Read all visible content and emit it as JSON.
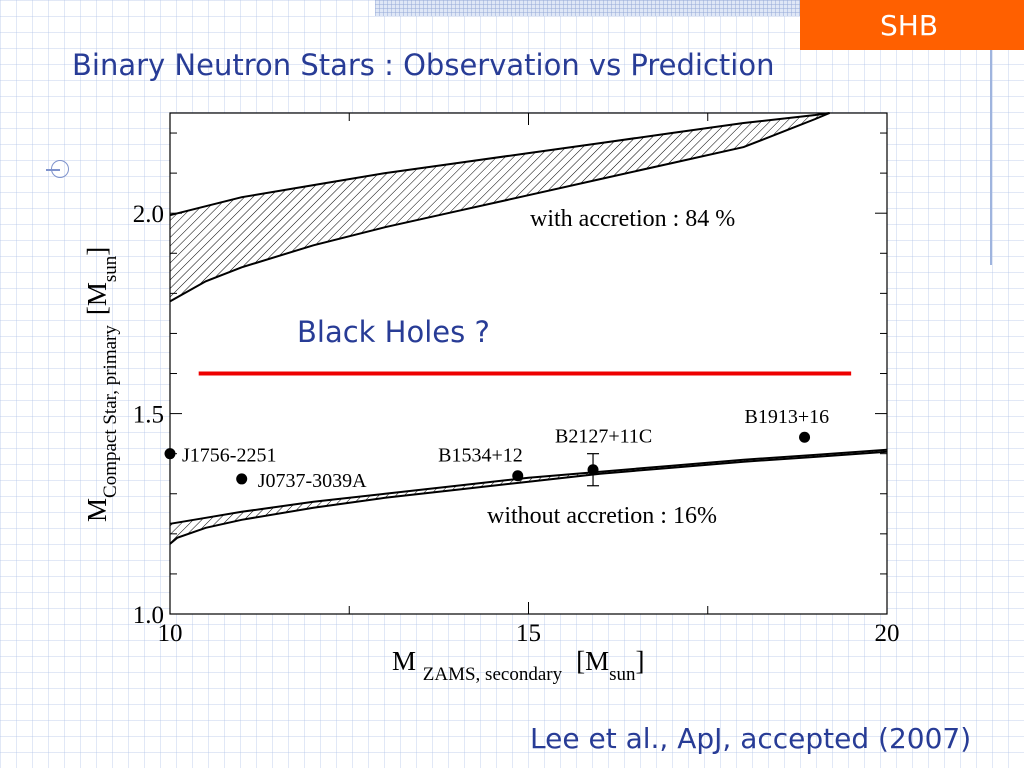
{
  "slide": {
    "tag": "SHB",
    "title": "Binary Neutron Stars : Observation vs Prediction",
    "citation": "Lee et al., ApJ, accepted (2007)",
    "colors": {
      "title": "#283c96",
      "tag_bg": "#ff6000",
      "boundary_line": "#ee0000"
    }
  },
  "chart_data": {
    "type": "area",
    "xlim": [
      10,
      20
    ],
    "ylim": [
      1.0,
      2.25
    ],
    "xticks": [
      {
        "value": 10,
        "label": "10"
      },
      {
        "value": 15,
        "label": "15"
      },
      {
        "value": 20,
        "label": "20"
      }
    ],
    "yticks": [
      {
        "value": 1.0,
        "label": "1.0"
      },
      {
        "value": 1.5,
        "label": "1.5"
      },
      {
        "value": 2.0,
        "label": "2.0"
      }
    ],
    "xlabel": {
      "main": "M",
      "sub": "ZAMS, secondary",
      "unit_pre": "[M",
      "unit_sub": "sun",
      "unit_post": "]"
    },
    "ylabel": {
      "main": "M",
      "sub": "Compact Star, primary",
      "unit_pre": "[M",
      "unit_sub": "sun",
      "unit_post": "]"
    },
    "bands": [
      {
        "label": "with accretion : 84 %",
        "upper": [
          [
            10.0,
            1.995
          ],
          [
            11,
            2.04
          ],
          [
            12,
            2.07
          ],
          [
            13,
            2.1
          ],
          [
            14,
            2.125
          ],
          [
            15,
            2.15
          ],
          [
            16,
            2.175
          ],
          [
            17,
            2.2
          ],
          [
            18,
            2.225
          ],
          [
            19,
            2.245
          ],
          [
            19.2,
            2.25
          ]
        ],
        "lower": [
          [
            10.0,
            1.78
          ],
          [
            10.5,
            1.83
          ],
          [
            11,
            1.865
          ],
          [
            12,
            1.92
          ],
          [
            13,
            1.965
          ],
          [
            14,
            2.005
          ],
          [
            15,
            2.045
          ],
          [
            16,
            2.085
          ],
          [
            17,
            2.125
          ],
          [
            18,
            2.165
          ],
          [
            19,
            2.235
          ],
          [
            19.2,
            2.25
          ]
        ]
      },
      {
        "label": "without accretion : 16%",
        "upper": [
          [
            10.0,
            1.225
          ],
          [
            10.5,
            1.24
          ],
          [
            11,
            1.255
          ],
          [
            12,
            1.28
          ],
          [
            13,
            1.3
          ],
          [
            14,
            1.32
          ],
          [
            15,
            1.34
          ],
          [
            16,
            1.355
          ],
          [
            17,
            1.37
          ],
          [
            18,
            1.385
          ],
          [
            19,
            1.397
          ],
          [
            20,
            1.41
          ]
        ],
        "lower": [
          [
            10.0,
            1.175
          ],
          [
            10.1,
            1.19
          ],
          [
            10.5,
            1.215
          ],
          [
            11,
            1.235
          ],
          [
            12,
            1.265
          ],
          [
            13,
            1.29
          ],
          [
            14,
            1.31
          ],
          [
            15,
            1.33
          ],
          [
            16,
            1.35
          ],
          [
            17,
            1.365
          ],
          [
            18,
            1.38
          ],
          [
            19,
            1.392
          ],
          [
            20,
            1.405
          ]
        ]
      }
    ],
    "threshold": {
      "label": "Black Holes ?",
      "y": 1.6,
      "x_range": [
        10.4,
        19.5
      ],
      "color": "#ee0000"
    },
    "points": [
      {
        "name": "J1756-2251",
        "x": 10.0,
        "y": 1.4,
        "xerr": 0.0,
        "yerr": 0.0
      },
      {
        "name": "J0737-3039A",
        "x": 11.0,
        "y": 1.337,
        "xerr": 0.05,
        "yerr": 0.0
      },
      {
        "name": "B1534+12",
        "x": 14.85,
        "y": 1.345,
        "xerr": 0.0,
        "yerr": 0.0
      },
      {
        "name": "B2127+11C",
        "x": 15.9,
        "y": 1.36,
        "xerr": 0.0,
        "yerr": 0.04
      },
      {
        "name": "B1913+16",
        "x": 18.85,
        "y": 1.441,
        "xerr": 0.0,
        "yerr": 0.0
      }
    ]
  }
}
